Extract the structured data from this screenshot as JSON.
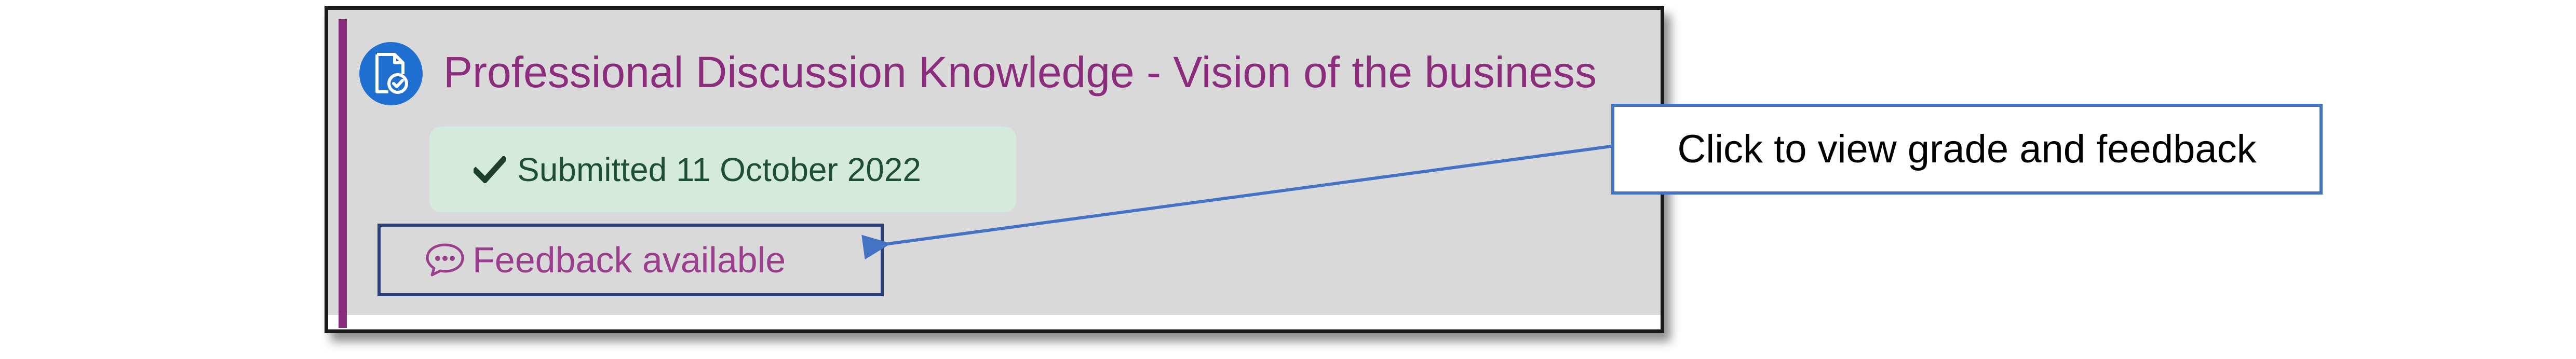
{
  "activity": {
    "icon": "assignment-check-icon",
    "title": "Professional Discussion Knowledge - Vision of the business"
  },
  "status": {
    "icon": "checkmark-icon",
    "submitted_text": "Submitted 11 October 2022"
  },
  "feedback": {
    "icon": "speech-bubble-icon",
    "label": "Feedback available"
  },
  "callout": {
    "text": "Click to view grade and feedback"
  },
  "colors": {
    "accent": "#8a2a7a",
    "title": "#8b2c7c",
    "icon_background": "#1f6fd1",
    "submitted_background": "#d3eadc",
    "submitted_text": "#1e4f34",
    "feedback_text": "#9b3e8d",
    "callout_border": "#4472c4",
    "arrow": "#4472c4"
  }
}
